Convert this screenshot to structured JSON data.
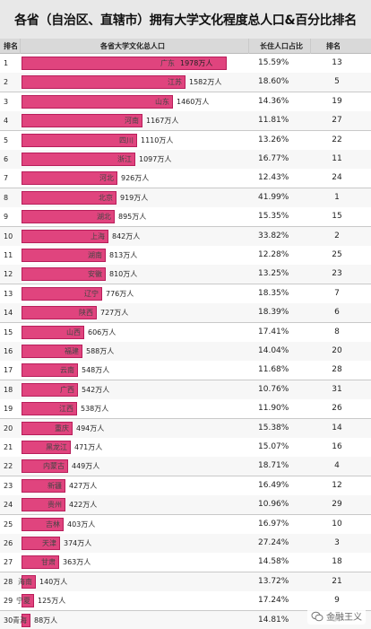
{
  "title": "各省（自治区、直辖市）拥有大学文化程度总人口&百分比排名",
  "columns": {
    "rank": "排名",
    "total": "各省大学文化总人口",
    "ratio": "长住人口占比",
    "ratio_rank": "排名"
  },
  "unit_suffix": "万人",
  "watermark": "金融王义",
  "colors": {
    "bar": "#e0447e",
    "header_bg": "#d9d9d9",
    "title_bg": "#e8e8e8"
  },
  "chart_data": {
    "type": "bar",
    "categories": [
      "广东",
      "江苏",
      "山东",
      "河南",
      "四川",
      "浙江",
      "河北",
      "北京",
      "湖北",
      "上海",
      "湖南",
      "安徽",
      "辽宁",
      "陕西",
      "山西",
      "福建",
      "云南",
      "广西",
      "江西",
      "重庆",
      "黑龙江",
      "内蒙古",
      "新疆",
      "贵州",
      "吉林",
      "天津",
      "甘肃",
      "海南",
      "宁夏",
      "青海"
    ],
    "values": [
      1978,
      1582,
      1460,
      1167,
      1110,
      1097,
      926,
      919,
      895,
      842,
      813,
      810,
      776,
      727,
      606,
      588,
      548,
      542,
      538,
      494,
      471,
      449,
      427,
      422,
      403,
      374,
      363,
      140,
      125,
      88
    ],
    "ranks": [
      "1",
      "2",
      "3",
      "4",
      "5",
      "6",
      "7",
      "8",
      "9",
      "10",
      "11",
      "12",
      "13",
      "14",
      "15",
      "16",
      "17",
      "18",
      "19",
      "20",
      "21",
      "22",
      "23",
      "24",
      "25",
      "26",
      "27",
      "28",
      "29",
      "30"
    ],
    "ratios": [
      "15.59%",
      "18.60%",
      "14.36%",
      "11.81%",
      "13.26%",
      "16.77%",
      "12.43%",
      "41.99%",
      "15.35%",
      "33.82%",
      "12.28%",
      "13.25%",
      "18.35%",
      "18.39%",
      "17.41%",
      "14.04%",
      "11.68%",
      "10.76%",
      "11.90%",
      "15.38%",
      "15.07%",
      "18.71%",
      "16.49%",
      "10.96%",
      "16.97%",
      "27.24%",
      "14.58%",
      "13.72%",
      "17.24%",
      "14.81%"
    ],
    "ratio_ranks": [
      "13",
      "5",
      "19",
      "27",
      "22",
      "11",
      "24",
      "1",
      "15",
      "2",
      "25",
      "23",
      "7",
      "6",
      "8",
      "20",
      "28",
      "31",
      "26",
      "14",
      "16",
      "4",
      "12",
      "29",
      "10",
      "3",
      "18",
      "21",
      "9",
      "17"
    ],
    "xlim": [
      0,
      2000
    ]
  }
}
